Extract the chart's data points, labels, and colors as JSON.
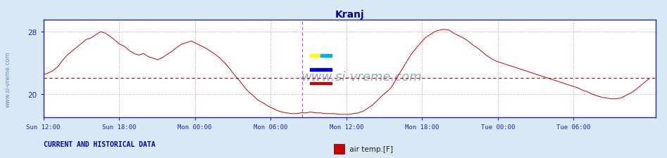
{
  "title": "Kranj",
  "ylabel_ticks": [
    20,
    28
  ],
  "ylim": [
    17.0,
    29.5
  ],
  "xlim_hours": [
    0,
    48.5
  ],
  "x_tick_labels": [
    "Sun 12:00",
    "Sun 18:00",
    "Mon 00:00",
    "Mon 06:00",
    "Mon 12:00",
    "Mon 18:00",
    "Tue 00:00",
    "Tue 06:00"
  ],
  "x_tick_positions": [
    0,
    6,
    12,
    18,
    24,
    30,
    36,
    42
  ],
  "h_dashed_y": 22.1,
  "v_dashed_x": 20.5,
  "outer_bg_color": "#d8e8f5",
  "plot_bg_color": "#ffffff",
  "grid_color": "#e8a0a0",
  "line_color": "#cc0000",
  "title_color": "#0000aa",
  "axis_color": "#2222cc",
  "tick_label_color": "#2222cc",
  "watermark_text": "www.si-vreme.com",
  "watermark_color": "#7090b0",
  "bottom_label": "CURRENT AND HISTORICAL DATA",
  "legend_label": " air temp.[F]",
  "legend_color": "#cc0000",
  "watermark_fontsize": 13,
  "title_fontsize": 10,
  "y_data": [
    22.5,
    22.7,
    23.0,
    23.5,
    24.3,
    25.0,
    25.5,
    26.0,
    26.5,
    27.0,
    27.2,
    27.6,
    28.0,
    27.8,
    27.4,
    26.9,
    26.4,
    26.1,
    25.6,
    25.2,
    25.0,
    25.2,
    24.8,
    24.6,
    24.4,
    24.7,
    25.1,
    25.5,
    26.0,
    26.4,
    26.6,
    26.8,
    26.5,
    26.2,
    25.9,
    25.5,
    25.1,
    24.6,
    24.0,
    23.3,
    22.5,
    21.8,
    21.0,
    20.3,
    19.8,
    19.2,
    18.9,
    18.5,
    18.2,
    17.9,
    17.7,
    17.6,
    17.5,
    17.5,
    17.6,
    17.6,
    17.7,
    17.6,
    17.6,
    17.5,
    17.5,
    17.5,
    17.4,
    17.4,
    17.4,
    17.5,
    17.6,
    17.8,
    18.2,
    18.6,
    19.2,
    19.8,
    20.3,
    20.9,
    22.0,
    23.0,
    24.0,
    25.0,
    25.8,
    26.5,
    27.2,
    27.6,
    28.0,
    28.2,
    28.3,
    28.2,
    27.8,
    27.5,
    27.2,
    26.8,
    26.3,
    25.9,
    25.4,
    24.9,
    24.5,
    24.2,
    24.0,
    23.8,
    23.6,
    23.4,
    23.2,
    23.0,
    22.8,
    22.6,
    22.4,
    22.2,
    22.0,
    21.8,
    21.6,
    21.4,
    21.2,
    21.0,
    20.8,
    20.5,
    20.3,
    20.0,
    19.8,
    19.6,
    19.5,
    19.4,
    19.4,
    19.5,
    19.8,
    20.1,
    20.5,
    21.0,
    21.5,
    22.0
  ]
}
